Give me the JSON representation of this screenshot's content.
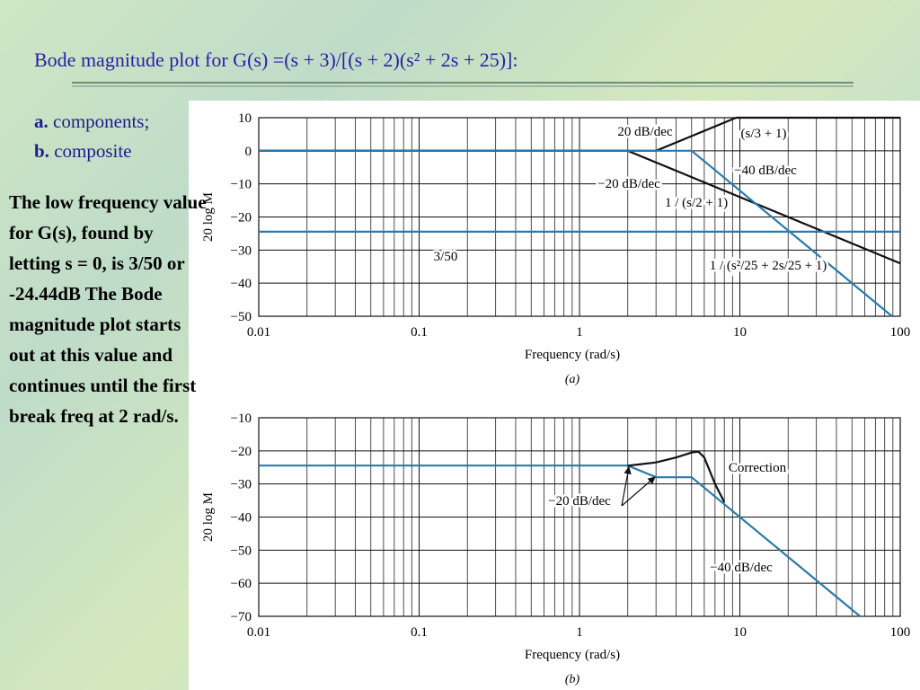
{
  "title": "Bode magnitude plot for G(s) =(s + 3)/[(s + 2)(s² + 2s + 25)]:",
  "items": [
    {
      "letter": "a.",
      "text": "components;"
    },
    {
      "letter": "b.",
      "text": "composite"
    }
  ],
  "note": "The low frequency value for G(s), found by letting s = 0, is 3/50 or -24.44dB The Bode magnitude plot starts out at this value and continues until the first break freq at 2 rad/s.",
  "chart_data": [
    {
      "type": "line",
      "caption": "(a)",
      "xlabel": "Frequency (rad/s)",
      "ylabel": "20 log M",
      "log_x": true,
      "grid": true,
      "xlim": [
        0.01,
        100
      ],
      "xticks": [
        0.01,
        0.1,
        1,
        10,
        100
      ],
      "ylim": [
        -50,
        10
      ],
      "yticks": [
        {
          "value": -50,
          "label": "−50"
        },
        {
          "value": -40,
          "label": "−40"
        },
        {
          "value": -30,
          "label": "−30"
        },
        {
          "value": -20,
          "label": "−20"
        },
        {
          "value": -10,
          "label": "−10"
        },
        0,
        10
      ],
      "series": [
        {
          "name": "(s/3 + 1)",
          "color": "#111111",
          "x": [
            0.01,
            3,
            9.49,
            100
          ],
          "values": [
            0,
            0,
            10,
            10
          ]
        },
        {
          "name": "1 / (s/2 + 1)",
          "color": "#111111",
          "x": [
            0.01,
            2,
            100
          ],
          "values": [
            0,
            0,
            -34
          ]
        },
        {
          "name": "1 / (s²/25 + 2s/25 + 1)",
          "color": "#2a7bab",
          "x": [
            0.01,
            5,
            88.9
          ],
          "values": [
            0,
            0,
            -50
          ]
        },
        {
          "name": "3/50",
          "color": "#2a7bab",
          "x": [
            0.01,
            100
          ],
          "values": [
            -24.44,
            -24.44
          ]
        }
      ],
      "annotations": [
        "20 dB/dec",
        "−20 dB/dec",
        "−40 dB/dec"
      ]
    },
    {
      "type": "line",
      "caption": "(b)",
      "xlabel": "Frequency (rad/s)",
      "ylabel": "20 log M",
      "log_x": true,
      "grid": true,
      "xlim": [
        0.01,
        100
      ],
      "xticks": [
        0.01,
        0.1,
        1,
        10,
        100
      ],
      "ylim": [
        -70,
        -10
      ],
      "yticks": [
        {
          "value": -70,
          "label": "−70"
        },
        {
          "value": -60,
          "label": "−60"
        },
        {
          "value": -50,
          "label": "−50"
        },
        {
          "value": -40,
          "label": "−40"
        },
        {
          "value": -30,
          "label": "−30"
        },
        {
          "value": -20,
          "label": "−20"
        },
        {
          "value": -10,
          "label": "−10"
        }
      ],
      "series": [
        {
          "color": "#2a7bab",
          "x": [
            0.01,
            2,
            3,
            5,
            56.2
          ],
          "values": [
            -24.44,
            -24.44,
            -27.96,
            -27.96,
            -70
          ]
        },
        {
          "name": "Correction",
          "color": "#111111",
          "x": [
            2,
            3,
            4,
            5,
            5.5,
            6,
            7,
            8
          ],
          "values": [
            -24.5,
            -23.5,
            -22,
            -20.5,
            -20.2,
            -22,
            -30,
            -35.5
          ]
        }
      ],
      "annotations": [
        "−20 dB/dec",
        "−40 dB/dec"
      ]
    }
  ]
}
